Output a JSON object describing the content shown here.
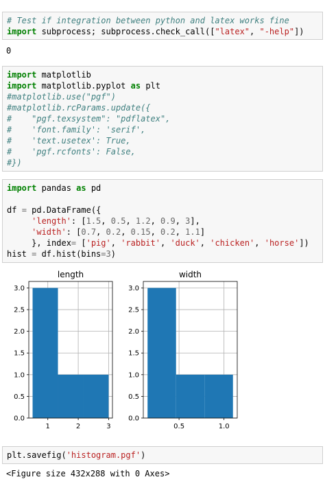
{
  "cells": {
    "cell1": {
      "lines": [
        [
          {
            "t": "# Test if integration between python and latex works fine",
            "c": "cm"
          }
        ],
        [
          {
            "t": "import",
            "c": "kw"
          },
          {
            "t": " subprocess; subprocess.check_call(["
          },
          {
            "t": "\"latex\"",
            "c": "st"
          },
          {
            "t": ", "
          },
          {
            "t": "\"-help\"",
            "c": "st"
          },
          {
            "t": "])"
          }
        ]
      ],
      "output": "0"
    },
    "cell2": {
      "lines": [
        [
          {
            "t": "import",
            "c": "kw"
          },
          {
            "t": " matplotlib"
          }
        ],
        [
          {
            "t": "import",
            "c": "kw"
          },
          {
            "t": " matplotlib.pyplot "
          },
          {
            "t": "as",
            "c": "kw"
          },
          {
            "t": " plt"
          }
        ],
        [
          {
            "t": "#matplotlib.use(\"pgf\")",
            "c": "cm"
          }
        ],
        [
          {
            "t": "#matplotlib.rcParams.update({",
            "c": "cm"
          }
        ],
        [
          {
            "t": "#    \"pgf.texsystem\": \"pdflatex\",",
            "c": "cm"
          }
        ],
        [
          {
            "t": "#    'font.family': 'serif',",
            "c": "cm"
          }
        ],
        [
          {
            "t": "#    'text.usetex': True,",
            "c": "cm"
          }
        ],
        [
          {
            "t": "#    'pgf.rcfonts': False,",
            "c": "cm"
          }
        ],
        [
          {
            "t": "#})",
            "c": "cm"
          }
        ]
      ]
    },
    "cell3": {
      "lines": [
        [
          {
            "t": "import",
            "c": "kw"
          },
          {
            "t": " pandas "
          },
          {
            "t": "as",
            "c": "kw"
          },
          {
            "t": " pd"
          }
        ],
        [
          {
            "t": ""
          }
        ],
        [
          {
            "t": "df "
          },
          {
            "t": "=",
            "c": "op"
          },
          {
            "t": " pd.DataFrame({"
          }
        ],
        [
          {
            "t": "     "
          },
          {
            "t": "'length'",
            "c": "st"
          },
          {
            "t": ": ["
          },
          {
            "t": "1.5",
            "c": "nm"
          },
          {
            "t": ", "
          },
          {
            "t": "0.5",
            "c": "nm"
          },
          {
            "t": ", "
          },
          {
            "t": "1.2",
            "c": "nm"
          },
          {
            "t": ", "
          },
          {
            "t": "0.9",
            "c": "nm"
          },
          {
            "t": ", "
          },
          {
            "t": "3",
            "c": "nm"
          },
          {
            "t": "],"
          }
        ],
        [
          {
            "t": "     "
          },
          {
            "t": "'width'",
            "c": "st"
          },
          {
            "t": ": ["
          },
          {
            "t": "0.7",
            "c": "nm"
          },
          {
            "t": ", "
          },
          {
            "t": "0.2",
            "c": "nm"
          },
          {
            "t": ", "
          },
          {
            "t": "0.15",
            "c": "nm"
          },
          {
            "t": ", "
          },
          {
            "t": "0.2",
            "c": "nm"
          },
          {
            "t": ", "
          },
          {
            "t": "1.1",
            "c": "nm"
          },
          {
            "t": "]"
          }
        ],
        [
          {
            "t": "     }, index"
          },
          {
            "t": "=",
            "c": "op"
          },
          {
            "t": " ["
          },
          {
            "t": "'pig'",
            "c": "st"
          },
          {
            "t": ", "
          },
          {
            "t": "'rabbit'",
            "c": "st"
          },
          {
            "t": ", "
          },
          {
            "t": "'duck'",
            "c": "st"
          },
          {
            "t": ", "
          },
          {
            "t": "'chicken'",
            "c": "st"
          },
          {
            "t": ", "
          },
          {
            "t": "'horse'",
            "c": "st"
          },
          {
            "t": "])"
          }
        ],
        [
          {
            "t": "hist "
          },
          {
            "t": "=",
            "c": "op"
          },
          {
            "t": " df.hist(bins"
          },
          {
            "t": "=",
            "c": "op"
          },
          {
            "t": "3",
            "c": "nm"
          },
          {
            "t": ")"
          }
        ]
      ]
    },
    "cell4": {
      "lines": [
        [
          {
            "t": "plt.savefig("
          },
          {
            "t": "'histogram.pgf'",
            "c": "st"
          },
          {
            "t": ")"
          }
        ]
      ],
      "output": "<Figure size 432x288 with 0 Axes>"
    }
  },
  "colors": {
    "bar": "#1f77b4",
    "grid": "#b0b0b0",
    "cell_bg": "#f7f7f7"
  },
  "chart_data": [
    {
      "type": "bar",
      "title": "length",
      "bins": [
        [
          0.5,
          1.3333
        ],
        [
          1.3333,
          2.1667
        ],
        [
          2.1667,
          3.0
        ]
      ],
      "values": [
        3,
        1,
        1
      ],
      "xlim": [
        0.375,
        3.125
      ],
      "ylim": [
        0,
        3.15
      ],
      "xticks": [
        1,
        2,
        3
      ],
      "xtick_labels": [
        "1",
        "2",
        "3"
      ],
      "yticks": [
        0,
        0.5,
        1,
        1.5,
        2,
        2.5,
        3
      ],
      "ytick_labels": [
        "0.0",
        "0.5",
        "1.0",
        "1.5",
        "2.0",
        "2.5",
        "3.0"
      ],
      "grid": true
    },
    {
      "type": "bar",
      "title": "width",
      "bins": [
        [
          0.15,
          0.4667
        ],
        [
          0.4667,
          0.7833
        ],
        [
          0.7833,
          1.1
        ]
      ],
      "values": [
        3,
        1,
        1
      ],
      "xlim": [
        0.1025,
        1.1475
      ],
      "ylim": [
        0,
        3.15
      ],
      "xticks": [
        0.5,
        1.0
      ],
      "xtick_labels": [
        "0.5",
        "1.0"
      ],
      "yticks": [
        0,
        0.5,
        1,
        1.5,
        2,
        2.5,
        3
      ],
      "ytick_labels": [
        "0.0",
        "0.5",
        "1.0",
        "1.5",
        "2.0",
        "2.5",
        "3.0"
      ],
      "grid": true
    }
  ]
}
